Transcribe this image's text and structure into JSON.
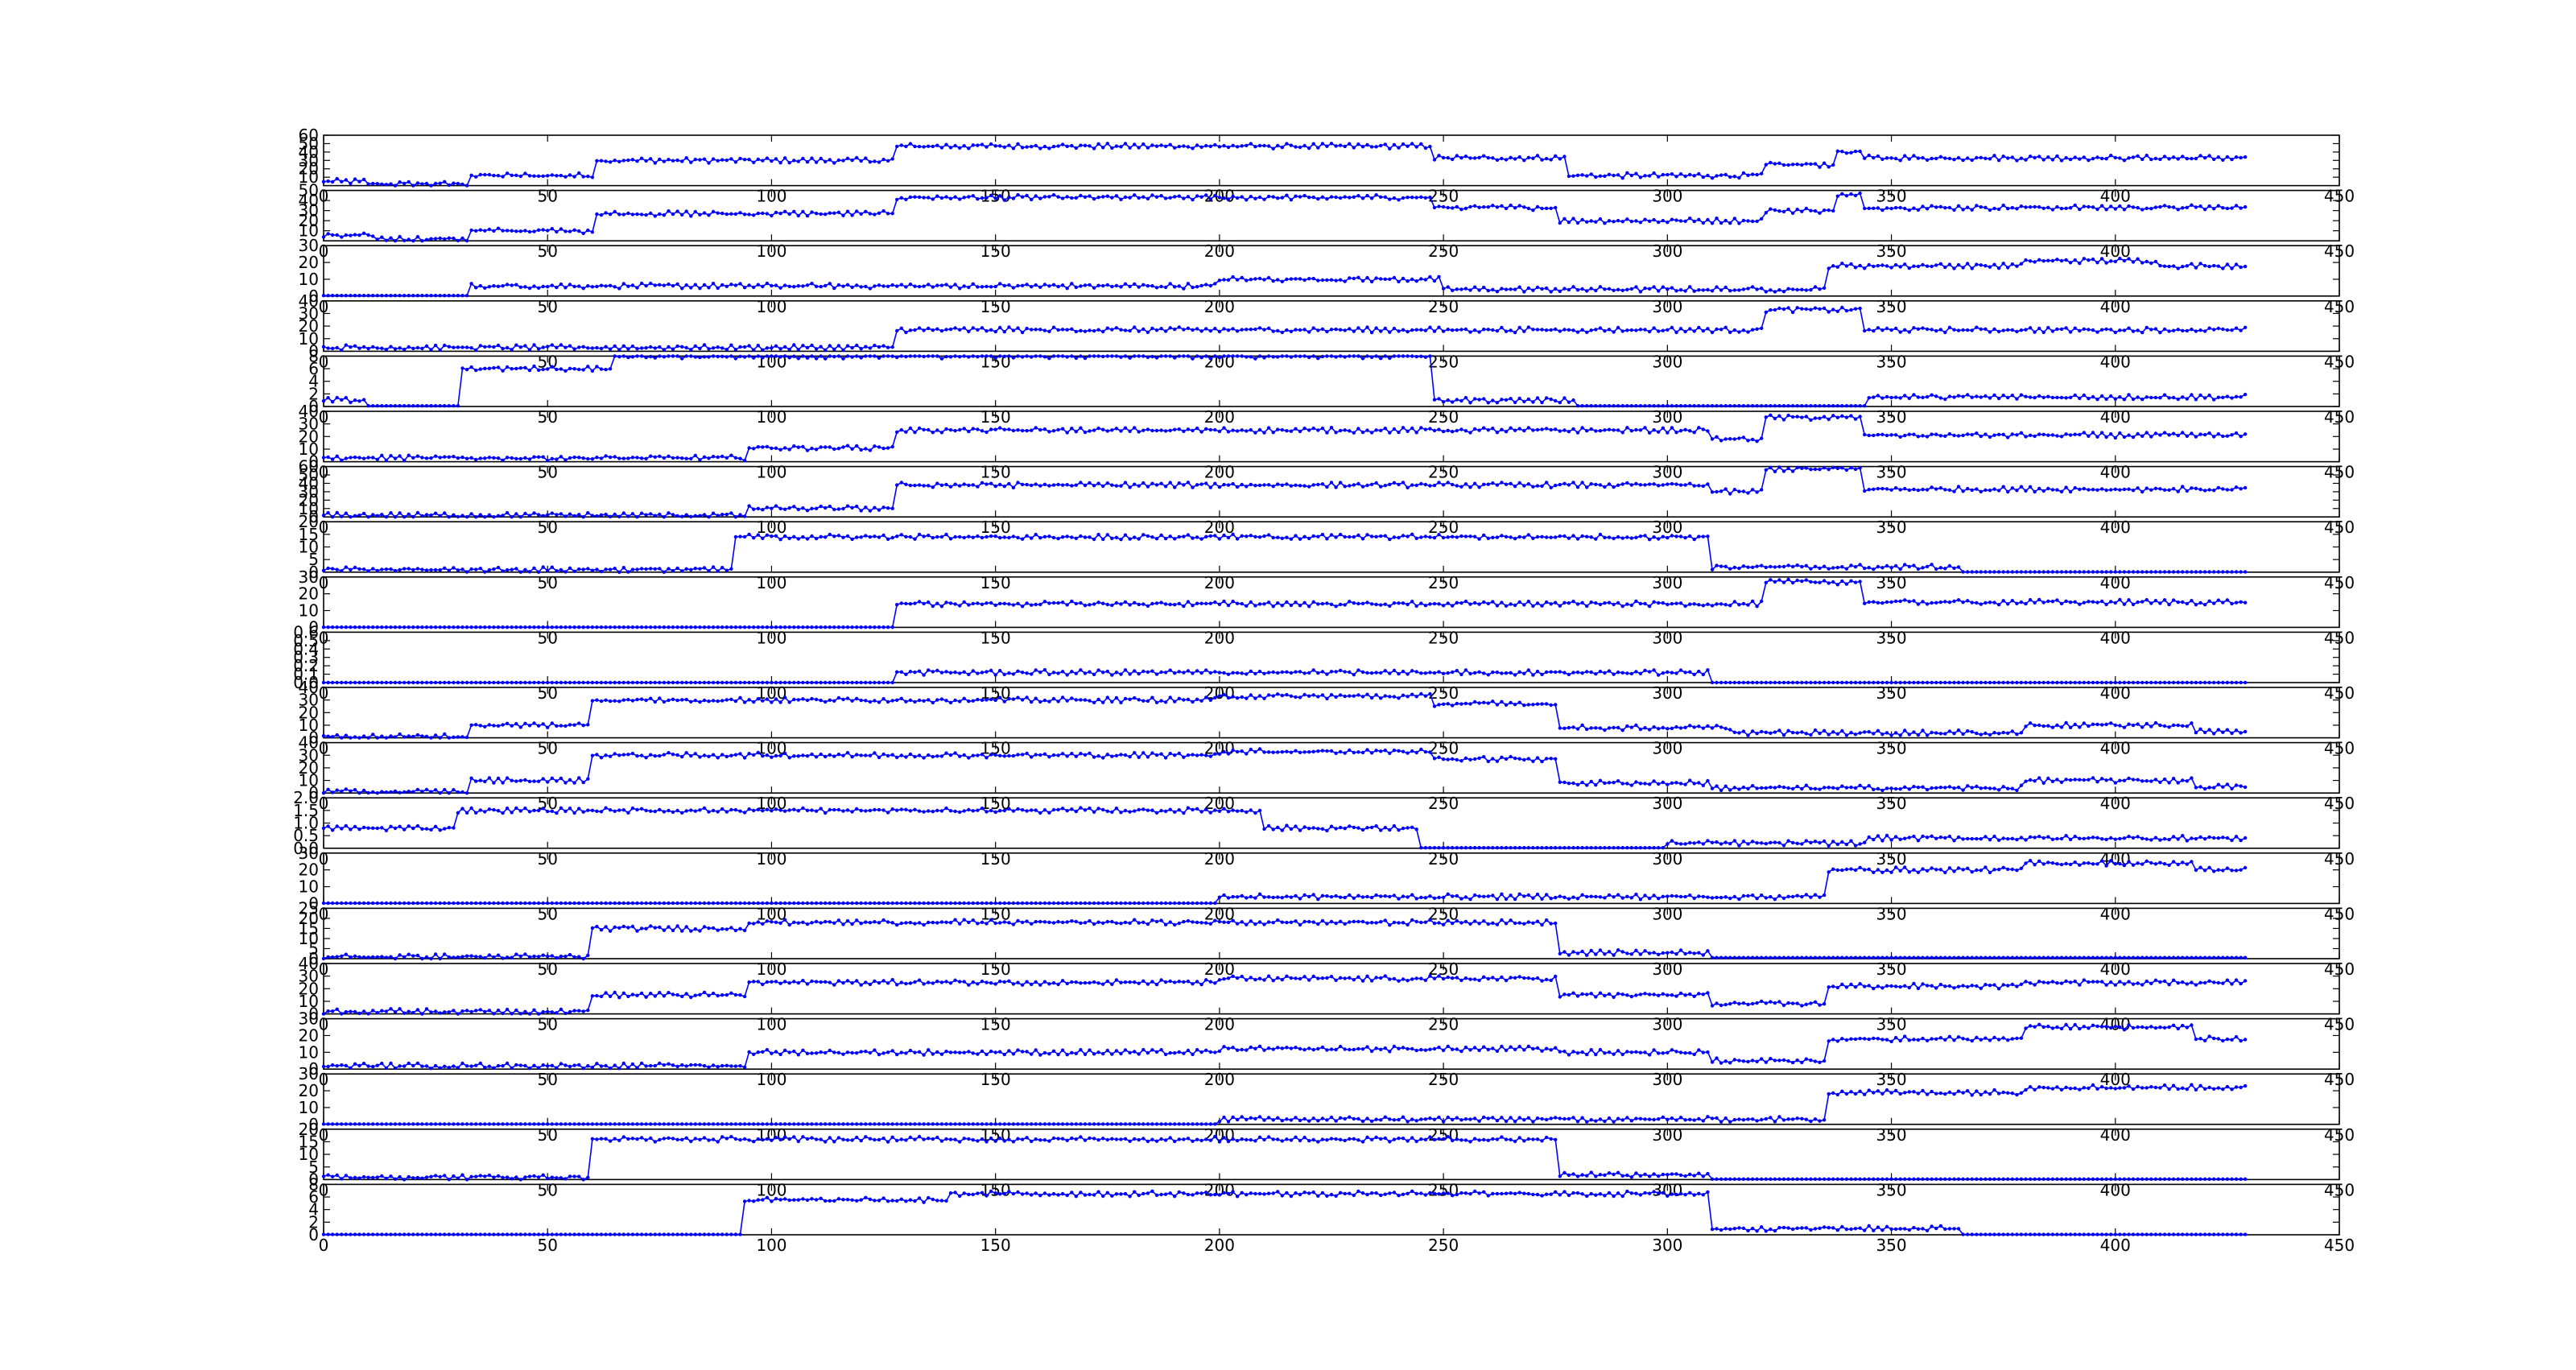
{
  "chart_data": {
    "type": "line",
    "x_range": [
      0,
      450
    ],
    "x_ticks": [
      0,
      50,
      100,
      150,
      200,
      250,
      300,
      350,
      400,
      450
    ],
    "n_points": 430,
    "line_color": "#0000ff",
    "marker": "dot",
    "grid": false,
    "panels": [
      {
        "ylim": [
          0,
          60
        ],
        "yticks": [
          10,
          20,
          30,
          40,
          50,
          60
        ],
        "base": 5,
        "segments": [
          [
            0,
            10,
            5
          ],
          [
            10,
            33,
            2
          ],
          [
            33,
            61,
            12
          ],
          [
            61,
            128,
            30
          ],
          [
            128,
            248,
            47
          ],
          [
            248,
            278,
            33
          ],
          [
            278,
            322,
            12
          ],
          [
            322,
            338,
            25
          ],
          [
            338,
            344,
            40
          ],
          [
            344,
            430,
            33
          ]
        ]
      },
      {
        "ylim": [
          0,
          50
        ],
        "yticks": [
          10,
          20,
          30,
          40,
          50
        ],
        "base": 0,
        "segments": [
          [
            0,
            12,
            5
          ],
          [
            12,
            33,
            2
          ],
          [
            33,
            61,
            10
          ],
          [
            61,
            128,
            27
          ],
          [
            128,
            248,
            43
          ],
          [
            248,
            276,
            33
          ],
          [
            276,
            322,
            20
          ],
          [
            322,
            338,
            30
          ],
          [
            338,
            344,
            45
          ],
          [
            344,
            430,
            33
          ]
        ]
      },
      {
        "ylim": [
          0,
          30
        ],
        "yticks": [
          0,
          10,
          20,
          30
        ],
        "base": 0,
        "segments": [
          [
            0,
            33,
            0.3
          ],
          [
            33,
            200,
            6
          ],
          [
            200,
            250,
            10
          ],
          [
            250,
            336,
            4
          ],
          [
            336,
            380,
            18
          ],
          [
            380,
            410,
            21
          ],
          [
            410,
            430,
            18
          ]
        ]
      },
      {
        "ylim": [
          0,
          40
        ],
        "yticks": [
          0,
          10,
          20,
          30,
          40
        ],
        "base": 0,
        "segments": [
          [
            0,
            128,
            3
          ],
          [
            128,
            322,
            17
          ],
          [
            322,
            344,
            33
          ],
          [
            344,
            430,
            17
          ]
        ]
      },
      {
        "ylim": [
          0,
          8
        ],
        "yticks": [
          0,
          2,
          4,
          6,
          8
        ],
        "base": 0,
        "segments": [
          [
            0,
            10,
            1
          ],
          [
            10,
            31,
            0.1
          ],
          [
            31,
            65,
            6
          ],
          [
            65,
            248,
            8
          ],
          [
            248,
            280,
            1
          ],
          [
            280,
            345,
            0.1
          ],
          [
            345,
            430,
            1.5
          ]
        ]
      },
      {
        "ylim": [
          0,
          40
        ],
        "yticks": [
          0,
          10,
          20,
          30,
          40
        ],
        "base": 0,
        "segments": [
          [
            0,
            95,
            3
          ],
          [
            95,
            128,
            11
          ],
          [
            128,
            310,
            25
          ],
          [
            310,
            322,
            18
          ],
          [
            322,
            344,
            35
          ],
          [
            344,
            430,
            21
          ]
        ]
      },
      {
        "ylim": [
          0,
          60
        ],
        "yticks": [
          0,
          10,
          20,
          30,
          40,
          50,
          60
        ],
        "base": 0,
        "segments": [
          [
            0,
            95,
            2
          ],
          [
            95,
            128,
            10
          ],
          [
            128,
            310,
            38
          ],
          [
            310,
            322,
            30
          ],
          [
            322,
            344,
            57
          ],
          [
            344,
            430,
            33
          ]
        ]
      },
      {
        "ylim": [
          0,
          20
        ],
        "yticks": [
          0,
          5,
          10,
          15,
          20
        ],
        "base": 0,
        "segments": [
          [
            0,
            92,
            1
          ],
          [
            92,
            310,
            14
          ],
          [
            310,
            366,
            2
          ],
          [
            366,
            430,
            0.1
          ]
        ]
      },
      {
        "ylim": [
          0,
          30
        ],
        "yticks": [
          0,
          10,
          20,
          30
        ],
        "base": 0,
        "segments": [
          [
            0,
            128,
            0.1
          ],
          [
            128,
            322,
            14
          ],
          [
            322,
            344,
            27
          ],
          [
            344,
            430,
            15
          ]
        ]
      },
      {
        "ylim": [
          0.0,
          0.6
        ],
        "yticks": [
          0.0,
          0.1,
          0.2,
          0.3,
          0.4,
          0.5,
          0.6
        ],
        "base": 0,
        "segments": [
          [
            0,
            128,
            0
          ],
          [
            128,
            310,
            0.12
          ],
          [
            310,
            430,
            0
          ]
        ]
      },
      {
        "ylim": [
          0,
          40
        ],
        "yticks": [
          0,
          10,
          20,
          30,
          40
        ],
        "base": 0,
        "segments": [
          [
            0,
            33,
            1
          ],
          [
            33,
            60,
            10
          ],
          [
            60,
            200,
            30
          ],
          [
            200,
            248,
            33
          ],
          [
            248,
            276,
            27
          ],
          [
            276,
            315,
            8
          ],
          [
            315,
            380,
            4
          ],
          [
            380,
            418,
            10
          ],
          [
            418,
            430,
            5
          ]
        ]
      },
      {
        "ylim": [
          0,
          40
        ],
        "yticks": [
          0,
          10,
          20,
          30,
          40
        ],
        "base": 0,
        "segments": [
          [
            0,
            33,
            1
          ],
          [
            33,
            60,
            10
          ],
          [
            60,
            200,
            30
          ],
          [
            200,
            248,
            33
          ],
          [
            248,
            276,
            27
          ],
          [
            276,
            310,
            8
          ],
          [
            310,
            380,
            4
          ],
          [
            380,
            418,
            10
          ],
          [
            418,
            430,
            5
          ]
        ]
      },
      {
        "ylim": [
          0.0,
          2.0
        ],
        "yticks": [
          0.0,
          0.5,
          1.0,
          1.5,
          2.0
        ],
        "base": 0,
        "segments": [
          [
            0,
            30,
            0.8
          ],
          [
            30,
            210,
            1.5
          ],
          [
            210,
            245,
            0.8
          ],
          [
            245,
            300,
            0.02
          ],
          [
            300,
            345,
            0.2
          ],
          [
            345,
            430,
            0.4
          ]
        ]
      },
      {
        "ylim": [
          0,
          30
        ],
        "yticks": [
          0,
          10,
          20,
          30
        ],
        "base": 0,
        "segments": [
          [
            0,
            200,
            0.2
          ],
          [
            200,
            336,
            4
          ],
          [
            336,
            380,
            20
          ],
          [
            380,
            418,
            24
          ],
          [
            418,
            430,
            20
          ]
        ]
      },
      {
        "ylim": [
          0,
          25
        ],
        "yticks": [
          0,
          5,
          10,
          15,
          20,
          25
        ],
        "base": 0,
        "segments": [
          [
            0,
            60,
            1
          ],
          [
            60,
            95,
            15
          ],
          [
            95,
            276,
            18
          ],
          [
            276,
            310,
            3
          ],
          [
            310,
            430,
            0.5
          ]
        ]
      },
      {
        "ylim": [
          0,
          40
        ],
        "yticks": [
          0,
          10,
          20,
          30,
          40
        ],
        "base": 0,
        "segments": [
          [
            0,
            60,
            2
          ],
          [
            60,
            95,
            15
          ],
          [
            95,
            200,
            25
          ],
          [
            200,
            276,
            28
          ],
          [
            276,
            310,
            15
          ],
          [
            310,
            336,
            8
          ],
          [
            336,
            380,
            22
          ],
          [
            380,
            430,
            25
          ]
        ]
      },
      {
        "ylim": [
          0,
          30
        ],
        "yticks": [
          0,
          10,
          20,
          30
        ],
        "base": 0,
        "segments": [
          [
            0,
            95,
            2
          ],
          [
            95,
            200,
            10
          ],
          [
            200,
            276,
            12
          ],
          [
            276,
            310,
            10
          ],
          [
            310,
            336,
            5
          ],
          [
            336,
            380,
            18
          ],
          [
            380,
            418,
            25
          ],
          [
            418,
            430,
            18
          ]
        ]
      },
      {
        "ylim": [
          0,
          30
        ],
        "yticks": [
          0,
          10,
          20,
          30
        ],
        "base": 0,
        "segments": [
          [
            0,
            200,
            0.2
          ],
          [
            200,
            336,
            3
          ],
          [
            336,
            380,
            19
          ],
          [
            380,
            430,
            22
          ]
        ]
      },
      {
        "ylim": [
          0,
          20
        ],
        "yticks": [
          0,
          5,
          10,
          15,
          20
        ],
        "base": 0,
        "segments": [
          [
            0,
            60,
            1
          ],
          [
            60,
            276,
            16
          ],
          [
            276,
            310,
            2
          ],
          [
            310,
            430,
            0.2
          ]
        ]
      },
      {
        "ylim": [
          0,
          8
        ],
        "yticks": [
          0,
          2,
          4,
          6,
          8
        ],
        "base": 0,
        "segments": [
          [
            0,
            94,
            0.05
          ],
          [
            94,
            140,
            5.5
          ],
          [
            140,
            310,
            6.5
          ],
          [
            310,
            366,
            1
          ],
          [
            366,
            430,
            0.05
          ]
        ]
      }
    ]
  }
}
